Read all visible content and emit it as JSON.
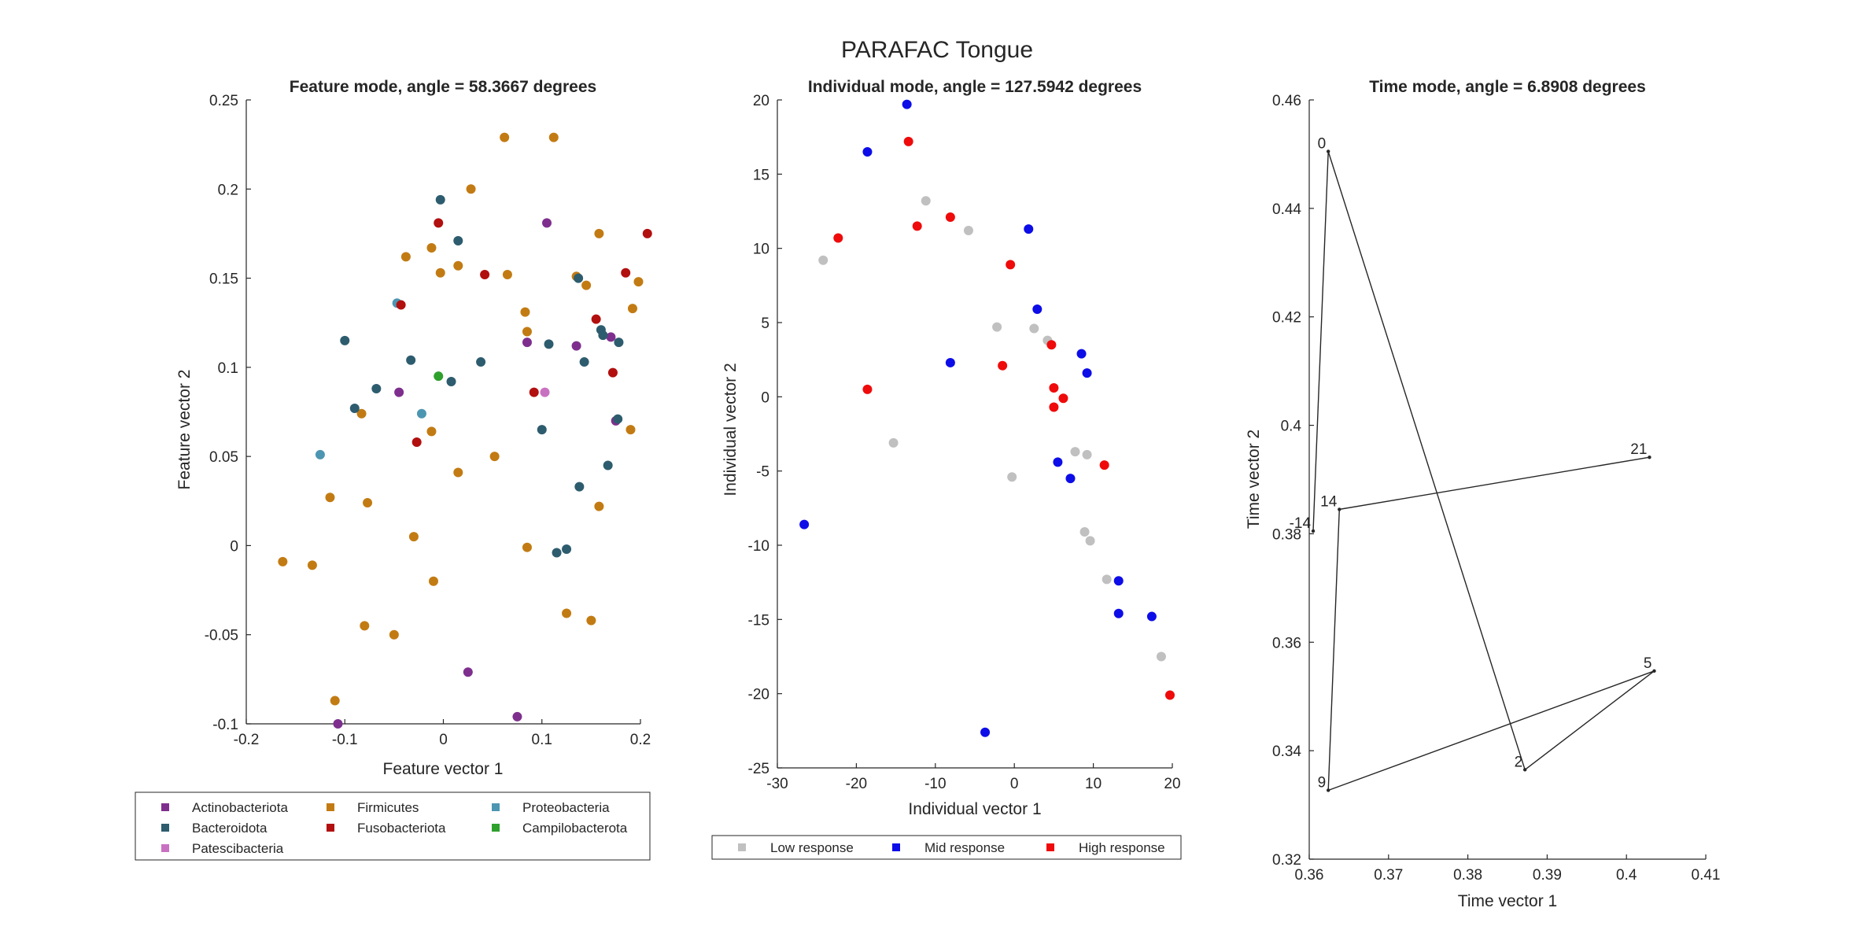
{
  "figure": {
    "suptitle": "PARAFAC Tongue"
  },
  "chart_data": [
    {
      "type": "scatter",
      "title": "Feature mode, angle = 58.3667 degrees",
      "xlabel": "Feature vector 1",
      "ylabel": "Feature vector 2",
      "xlim": [
        -0.2,
        0.2
      ],
      "ylim": [
        -0.1,
        0.25
      ],
      "xticks": [
        -0.2,
        -0.1,
        0,
        0.1,
        0.2
      ],
      "yticks": [
        -0.1,
        -0.05,
        0,
        0.05,
        0.1,
        0.15,
        0.2,
        0.25
      ],
      "xtick_labels": [
        "-0.2",
        "-0.1",
        "0",
        "0.1",
        "0.2"
      ],
      "ytick_labels": [
        "-0.1",
        "-0.05",
        "0",
        "0.05",
        "0.1",
        "0.15",
        "0.2",
        "0.25"
      ],
      "legend_position": "below",
      "legend_cols": 3,
      "series": [
        {
          "name": "Actinobacteriota",
          "color": "#7e2f8e",
          "points": [
            [
              -0.045,
              0.086
            ],
            [
              0.085,
              0.114
            ],
            [
              0.105,
              0.181
            ],
            [
              0.135,
              0.112
            ],
            [
              0.17,
              0.117
            ],
            [
              0.175,
              0.07
            ],
            [
              0.025,
              -0.071
            ],
            [
              0.075,
              -0.096
            ],
            [
              -0.107,
              -0.1
            ]
          ]
        },
        {
          "name": "Firmicutes",
          "color": "#c27b13",
          "points": [
            [
              0.062,
              0.229
            ],
            [
              0.112,
              0.229
            ],
            [
              0.028,
              0.2
            ],
            [
              -0.038,
              0.162
            ],
            [
              -0.012,
              0.167
            ],
            [
              -0.003,
              0.153
            ],
            [
              0.015,
              0.157
            ],
            [
              0.065,
              0.152
            ],
            [
              0.158,
              0.175
            ],
            [
              0.135,
              0.151
            ],
            [
              0.145,
              0.146
            ],
            [
              0.198,
              0.148
            ],
            [
              0.192,
              0.133
            ],
            [
              0.083,
              0.131
            ],
            [
              0.085,
              0.12
            ],
            [
              -0.083,
              0.074
            ],
            [
              -0.012,
              0.064
            ],
            [
              0.052,
              0.05
            ],
            [
              0.015,
              0.041
            ],
            [
              -0.115,
              0.027
            ],
            [
              -0.077,
              0.024
            ],
            [
              -0.03,
              0.005
            ],
            [
              0.085,
              -0.001
            ],
            [
              -0.163,
              -0.009
            ],
            [
              -0.133,
              -0.011
            ],
            [
              -0.01,
              -0.02
            ],
            [
              -0.08,
              -0.045
            ],
            [
              -0.05,
              -0.05
            ],
            [
              0.125,
              -0.038
            ],
            [
              0.15,
              -0.042
            ],
            [
              0.158,
              0.022
            ],
            [
              0.19,
              0.065
            ],
            [
              -0.11,
              -0.087
            ]
          ]
        },
        {
          "name": "Proteobacteria",
          "color": "#4d96b2",
          "points": [
            [
              -0.047,
              0.136
            ],
            [
              -0.022,
              0.074
            ],
            [
              -0.125,
              0.051
            ]
          ]
        },
        {
          "name": "Bacteroidota",
          "color": "#2d5c6e",
          "points": [
            [
              -0.003,
              0.194
            ],
            [
              0.015,
              0.171
            ],
            [
              -0.1,
              0.115
            ],
            [
              -0.033,
              0.104
            ],
            [
              0.038,
              0.103
            ],
            [
              0.107,
              0.113
            ],
            [
              0.137,
              0.15
            ],
            [
              0.143,
              0.103
            ],
            [
              0.16,
              0.121
            ],
            [
              0.162,
              0.118
            ],
            [
              0.178,
              0.114
            ],
            [
              0.008,
              0.092
            ],
            [
              -0.068,
              0.088
            ],
            [
              -0.09,
              0.077
            ],
            [
              0.1,
              0.065
            ],
            [
              0.177,
              0.071
            ],
            [
              0.167,
              0.045
            ],
            [
              0.138,
              0.033
            ],
            [
              0.115,
              -0.004
            ],
            [
              0.125,
              -0.002
            ]
          ]
        },
        {
          "name": "Fusobacteriota",
          "color": "#b20f0f",
          "points": [
            [
              -0.005,
              0.181
            ],
            [
              0.042,
              0.152
            ],
            [
              -0.043,
              0.135
            ],
            [
              0.155,
              0.127
            ],
            [
              0.185,
              0.153
            ],
            [
              0.207,
              0.175
            ],
            [
              0.172,
              0.097
            ],
            [
              0.092,
              0.086
            ],
            [
              -0.027,
              0.058
            ]
          ]
        },
        {
          "name": "Campilobacterota",
          "color": "#2ea02c",
          "points": [
            [
              -0.005,
              0.095
            ]
          ]
        },
        {
          "name": "Patescibacteria",
          "color": "#c971c1",
          "points": [
            [
              0.103,
              0.086
            ]
          ]
        }
      ]
    },
    {
      "type": "scatter",
      "title": "Individual mode, angle = 127.5942 degrees",
      "xlabel": "Individual vector 1",
      "ylabel": "Individual vector 2",
      "xlim": [
        -30,
        20
      ],
      "ylim": [
        -25,
        20
      ],
      "xticks": [
        -30,
        -20,
        -10,
        0,
        10,
        20
      ],
      "yticks": [
        -25,
        -20,
        -15,
        -10,
        -5,
        0,
        5,
        10,
        15,
        20
      ],
      "xtick_labels": [
        "-30",
        "-20",
        "-10",
        "0",
        "10",
        "20"
      ],
      "ytick_labels": [
        "-25",
        "-20",
        "-15",
        "-10",
        "-5",
        "0",
        "5",
        "10",
        "15",
        "20"
      ],
      "legend_position": "below",
      "legend_cols": 3,
      "series": [
        {
          "name": "Low response",
          "color": "#c0c0c0",
          "points": [
            [
              -24.2,
              9.2
            ],
            [
              -11.2,
              13.2
            ],
            [
              -5.8,
              11.2
            ],
            [
              -2.2,
              4.7
            ],
            [
              2.5,
              4.6
            ],
            [
              4.2,
              3.8
            ],
            [
              -15.3,
              -3.1
            ],
            [
              -0.3,
              -5.4
            ],
            [
              7.7,
              -3.7
            ],
            [
              9.2,
              -3.9
            ],
            [
              8.9,
              -9.1
            ],
            [
              9.6,
              -9.7
            ],
            [
              11.7,
              -12.3
            ],
            [
              18.6,
              -17.5
            ]
          ]
        },
        {
          "name": "Mid response",
          "color": "#0d0de8",
          "points": [
            [
              -13.6,
              19.7
            ],
            [
              -18.6,
              16.5
            ],
            [
              1.8,
              11.3
            ],
            [
              2.9,
              5.9
            ],
            [
              8.5,
              2.9
            ],
            [
              9.2,
              1.6
            ],
            [
              -8.1,
              2.3
            ],
            [
              5.5,
              -4.4
            ],
            [
              7.1,
              -5.5
            ],
            [
              -26.6,
              -8.6
            ],
            [
              13.2,
              -12.4
            ],
            [
              13.2,
              -14.6
            ],
            [
              17.4,
              -14.8
            ],
            [
              -3.7,
              -22.6
            ]
          ]
        },
        {
          "name": "High response",
          "color": "#ef0b0b",
          "points": [
            [
              -13.4,
              17.2
            ],
            [
              -12.3,
              11.5
            ],
            [
              -8.1,
              12.1
            ],
            [
              -22.3,
              10.7
            ],
            [
              -0.5,
              8.9
            ],
            [
              -1.5,
              2.1
            ],
            [
              4.7,
              3.5
            ],
            [
              5.0,
              0.6
            ],
            [
              6.2,
              -0.1
            ],
            [
              5.0,
              -0.7
            ],
            [
              -18.6,
              0.5
            ],
            [
              11.4,
              -4.6
            ],
            [
              19.7,
              -20.1
            ]
          ]
        }
      ]
    },
    {
      "type": "line",
      "title": "Time mode, angle = 6.8908 degrees",
      "xlabel": "Time vector 1",
      "ylabel": "Time vector 2",
      "xlim": [
        0.36,
        0.41
      ],
      "ylim": [
        0.32,
        0.46
      ],
      "xticks": [
        0.36,
        0.37,
        0.38,
        0.39,
        0.4,
        0.41
      ],
      "yticks": [
        0.32,
        0.34,
        0.36,
        0.38,
        0.4,
        0.42,
        0.44,
        0.46
      ],
      "xtick_labels": [
        "0.36",
        "0.37",
        "0.38",
        "0.39",
        "0.4",
        "0.41"
      ],
      "ytick_labels": [
        "0.32",
        "0.34",
        "0.36",
        "0.38",
        "0.4",
        "0.42",
        "0.44",
        "0.46"
      ],
      "line_color": "#262626",
      "points": [
        {
          "label": "-14",
          "x": 0.3605,
          "y": 0.3805
        },
        {
          "label": "0",
          "x": 0.3624,
          "y": 0.4505
        },
        {
          "label": "2",
          "x": 0.3872,
          "y": 0.3365
        },
        {
          "label": "5",
          "x": 0.4035,
          "y": 0.3547
        },
        {
          "label": "9",
          "x": 0.3624,
          "y": 0.3327
        },
        {
          "label": "14",
          "x": 0.3638,
          "y": 0.3845
        },
        {
          "label": "21",
          "x": 0.4029,
          "y": 0.3941
        }
      ]
    }
  ]
}
